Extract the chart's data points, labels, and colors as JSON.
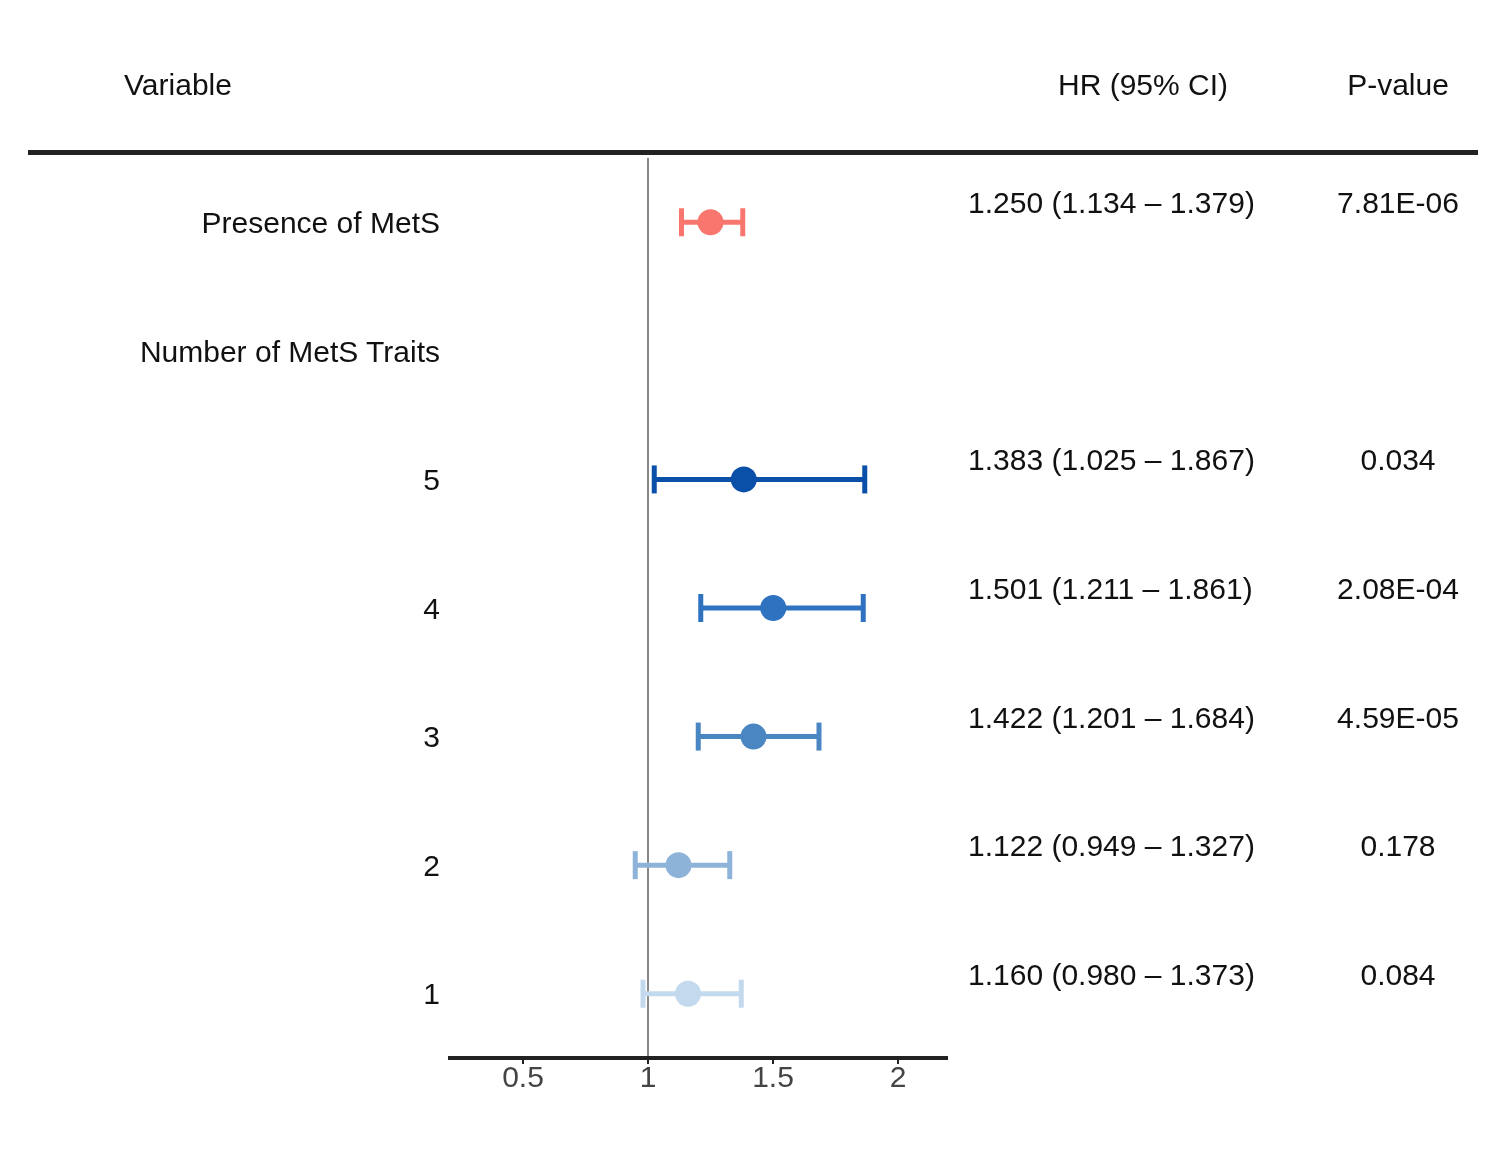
{
  "chart_data": {
    "type": "scatter",
    "orientation": "horizontal",
    "marker": "circle",
    "categories": [
      "Presence of MetS",
      "Number of MetS Traits",
      "5",
      "4",
      "3",
      "2",
      "1"
    ],
    "values": [
      1.25,
      null,
      1.383,
      1.501,
      1.422,
      1.122,
      1.16
    ],
    "errors": [
      [
        1.134,
        1.379
      ],
      null,
      [
        1.025,
        1.867
      ],
      [
        1.211,
        1.861
      ],
      [
        1.201,
        1.684
      ],
      [
        0.949,
        1.327
      ],
      [
        0.98,
        1.373
      ]
    ],
    "colors": [
      "#f8766d",
      null,
      "#0b50a8",
      "#2f72c0",
      "#4a87c2",
      "#8db3d9",
      "#c3d9ed"
    ],
    "value_labels": [
      "1.250 (1.134 – 1.379)",
      null,
      "1.383 (1.025 – 1.867)",
      "1.501 (1.211 – 1.861)",
      "1.422 (1.201 – 1.684)",
      "1.122 (0.949 – 1.327)",
      "1.160 (0.980 – 1.373)"
    ],
    "xlim": [
      0.2,
      2.2
    ],
    "xticks": [
      0.5,
      1,
      1.5,
      2
    ],
    "ref_lines": [
      {
        "axis": "x",
        "value": 1,
        "color": "#888888"
      }
    ],
    "annotations": [
      "Variable",
      "HR (95% CI)",
      "P-value",
      "7.81E-06",
      "0.034",
      "2.08E-04",
      "4.59E-05",
      "0.178",
      "0.084"
    ]
  }
}
